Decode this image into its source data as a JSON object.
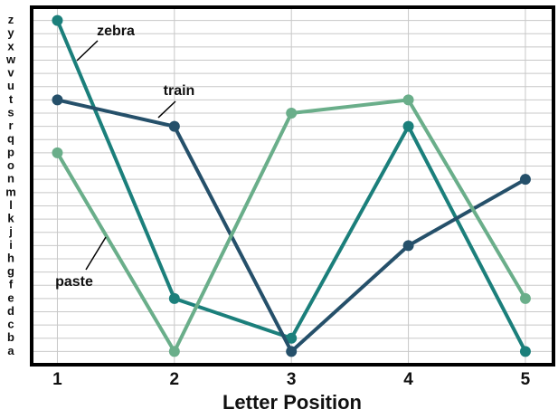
{
  "chart_data": {
    "type": "line",
    "xlabel": "Letter Position",
    "x": [
      1,
      2,
      3,
      4,
      5
    ],
    "series": [
      {
        "name": "zebra",
        "color": "#1b7f7b",
        "values": [
          26,
          5,
          2,
          18,
          1
        ]
      },
      {
        "name": "train",
        "color": "#25506a",
        "values": [
          20,
          18,
          1,
          9,
          14
        ]
      },
      {
        "name": "paste",
        "color": "#6aae8a",
        "values": [
          16,
          1,
          19,
          20,
          5
        ]
      }
    ],
    "xlim": [
      0.78,
      5.24
    ],
    "xticks": [
      1,
      2,
      3,
      4,
      5
    ],
    "ylim": [
      0,
      27
    ],
    "yticks": [
      {
        "value": 1,
        "label": "a"
      },
      {
        "value": 2,
        "label": "b"
      },
      {
        "value": 3,
        "label": "c"
      },
      {
        "value": 4,
        "label": "d"
      },
      {
        "value": 5,
        "label": "e"
      },
      {
        "value": 6,
        "label": "f"
      },
      {
        "value": 7,
        "label": "g"
      },
      {
        "value": 8,
        "label": "h"
      },
      {
        "value": 9,
        "label": "i"
      },
      {
        "value": 10,
        "label": "j"
      },
      {
        "value": 11,
        "label": "k"
      },
      {
        "value": 12,
        "label": "l"
      },
      {
        "value": 13,
        "label": "m"
      },
      {
        "value": 14,
        "label": "n"
      },
      {
        "value": 15,
        "label": "o"
      },
      {
        "value": 16,
        "label": "p"
      },
      {
        "value": 17,
        "label": "q"
      },
      {
        "value": 18,
        "label": "r"
      },
      {
        "value": 19,
        "label": "s"
      },
      {
        "value": 20,
        "label": "t"
      },
      {
        "value": 21,
        "label": "u"
      },
      {
        "value": 22,
        "label": "v"
      },
      {
        "value": 23,
        "label": "w"
      },
      {
        "value": 24,
        "label": "x"
      },
      {
        "value": 25,
        "label": "y"
      },
      {
        "value": 26,
        "label": "z"
      }
    ],
    "grid": true
  }
}
